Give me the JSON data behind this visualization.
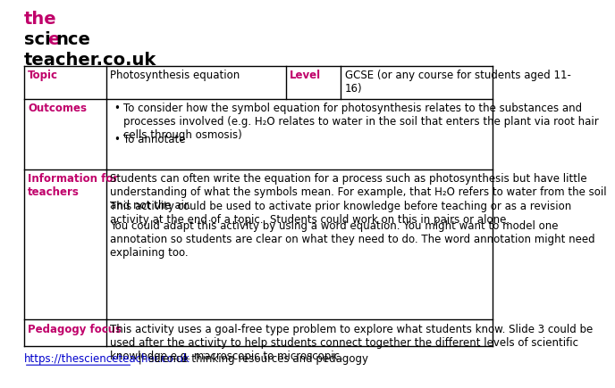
{
  "logo_color": "#c0006a",
  "logo_black": "#000000",
  "table_border_color": "#000000",
  "header_label_color": "#c0006a",
  "background_color": "#ffffff",
  "footer_link": "https://thescienceteacher.co.uk",
  "footer_text": " |  science thinking resources and pedagogy",
  "body_fontsize": 8.5,
  "col_splits": [
    0.03,
    0.195,
    0.555,
    0.665,
    0.97
  ],
  "row_splits": [
    0.845,
    0.755,
    0.565,
    0.16,
    0.09
  ],
  "info_p1": "Students can often write the equation for a process such as photosynthesis but have little\nunderstanding of what the symbols mean. For example, that H₂O refers to water from the soil\nand not the air.",
  "info_p2": "This activity could be used to activate prior knowledge before teaching or as a revision\nactivity at the end of a topic.  Students could work on this in pairs or alone.",
  "info_p3": "You could adapt this activity by using a word equation. You might want to model one\nannotation so students are clear on what they need to do. The word annotation might need\nexplaining too.",
  "pedagogy_text": "This activity uses a goal-free type problem to explore what students know. Slide 3 could be\nused after the activity to help students connect together the different levels of scientific\nknowledge e.g. macroscopic to microscopic.",
  "outcomes_bullet1": "To consider how the symbol equation for photosynthesis relates to the substances and\nprocesses involved (e.g. H₂O relates to water in the soil that enters the plant via root hair\ncells through osmosis)",
  "outcomes_bullet2": "To annotate"
}
